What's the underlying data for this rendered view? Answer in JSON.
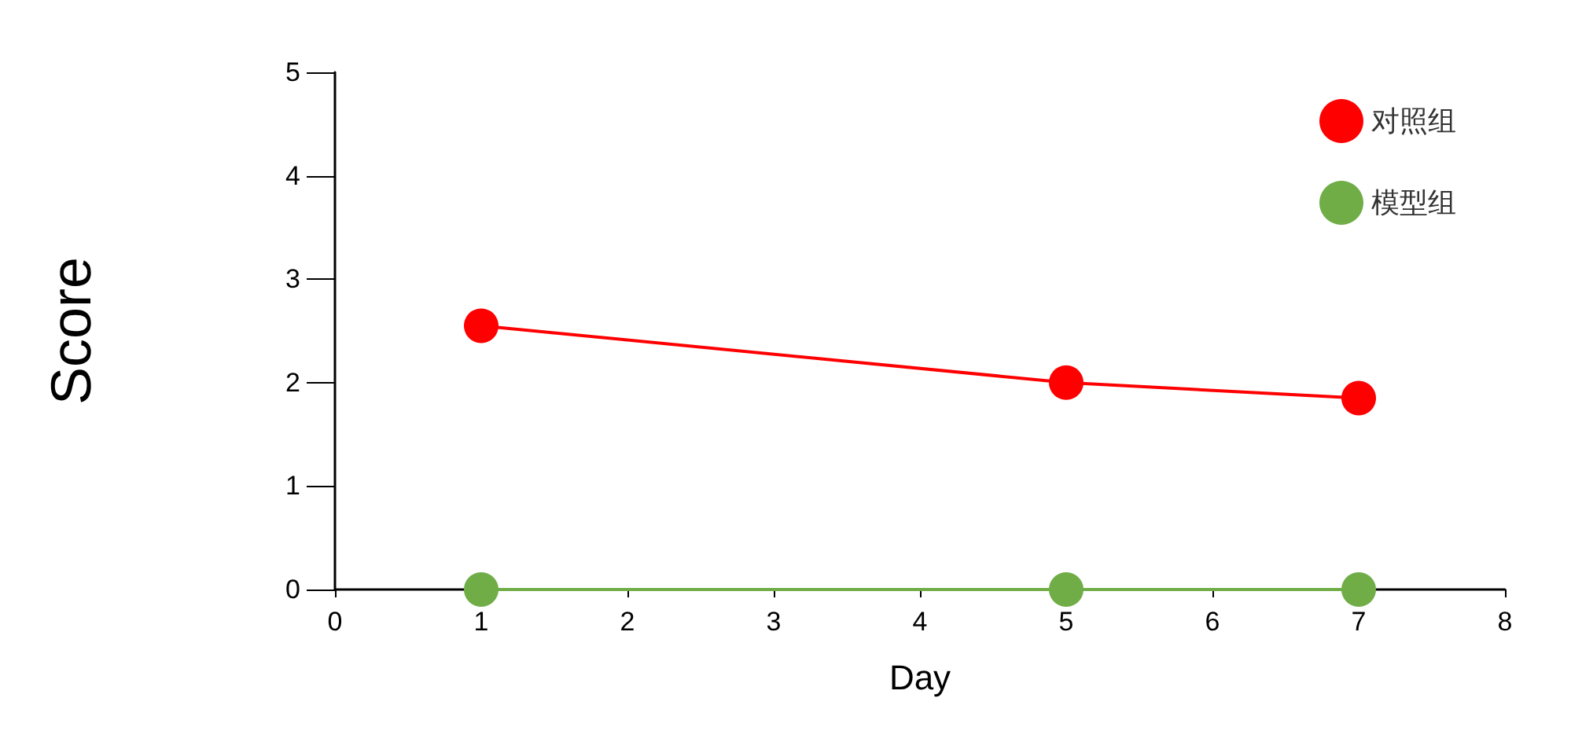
{
  "chart_data": {
    "type": "line",
    "xlabel": "Day",
    "ylabel": "Score",
    "x": [
      1,
      5,
      7
    ],
    "series": [
      {
        "name": "对照组",
        "color": "#ff0000",
        "values": [
          2.55,
          2.0,
          1.85
        ]
      },
      {
        "name": "模型组",
        "color": "#70ad47",
        "values": [
          0,
          0,
          0
        ]
      }
    ],
    "xlim": [
      0,
      8
    ],
    "xticks": [
      0,
      1,
      2,
      3,
      4,
      5,
      6,
      7,
      8
    ],
    "ylim": [
      0,
      5
    ],
    "yticks": [
      0,
      1,
      2,
      3,
      4,
      5
    ],
    "grid": false,
    "legend": "top right",
    "marker": "circle",
    "line_style": "solid"
  }
}
